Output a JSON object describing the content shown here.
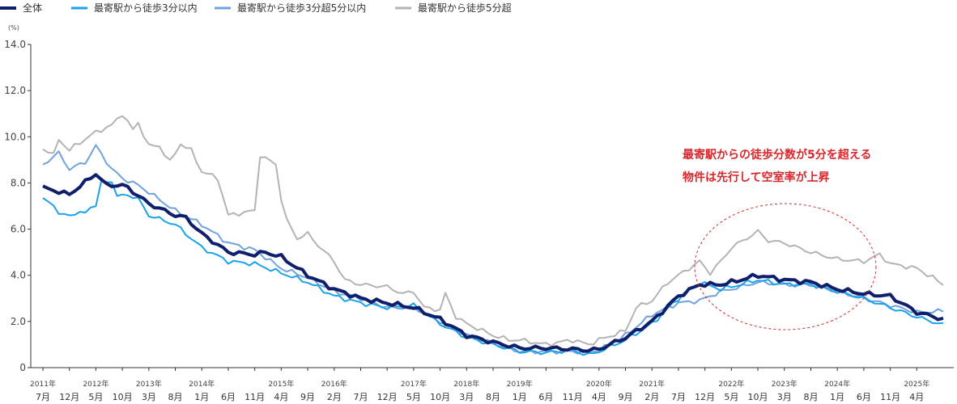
{
  "chart_data": {
    "type": "line",
    "unit_label": "(%)",
    "ylim": [
      0,
      14
    ],
    "yticks": [
      "0",
      "2.0",
      "4.0",
      "6.0",
      "8.0",
      "10.0",
      "12.0",
      "14.0"
    ],
    "grid": false,
    "legend_position": "top-left",
    "month_ticks": [
      {
        "i": 0,
        "label": "7月",
        "year": "2011年"
      },
      {
        "i": 5,
        "label": "12月"
      },
      {
        "i": 10,
        "label": "5月",
        "year": "2012年"
      },
      {
        "i": 15,
        "label": "10月"
      },
      {
        "i": 20,
        "label": "3月",
        "year": "2013年"
      },
      {
        "i": 25,
        "label": "8月"
      },
      {
        "i": 30,
        "label": "1月",
        "year": "2014年"
      },
      {
        "i": 35,
        "label": "6月"
      },
      {
        "i": 40,
        "label": "11月"
      },
      {
        "i": 45,
        "label": "4月",
        "year": "2015年"
      },
      {
        "i": 50,
        "label": "9月"
      },
      {
        "i": 55,
        "label": "2月",
        "year": "2016年"
      },
      {
        "i": 60,
        "label": "7月"
      },
      {
        "i": 65,
        "label": "12月"
      },
      {
        "i": 70,
        "label": "5月",
        "year": "2017年"
      },
      {
        "i": 75,
        "label": "10月"
      },
      {
        "i": 80,
        "label": "3月",
        "year": "2018年"
      },
      {
        "i": 85,
        "label": "8月"
      },
      {
        "i": 90,
        "label": "1月",
        "year": "2019年"
      },
      {
        "i": 95,
        "label": "6月"
      },
      {
        "i": 100,
        "label": "11月"
      },
      {
        "i": 105,
        "label": "4月",
        "year": "2020年"
      },
      {
        "i": 110,
        "label": "9月"
      },
      {
        "i": 115,
        "label": "2月",
        "year": "2021年"
      },
      {
        "i": 120,
        "label": "7月"
      },
      {
        "i": 125,
        "label": "12月"
      },
      {
        "i": 130,
        "label": "5月",
        "year": "2022年"
      },
      {
        "i": 135,
        "label": "10月"
      },
      {
        "i": 140,
        "label": "3月",
        "year": "2023年"
      },
      {
        "i": 145,
        "label": "8月"
      },
      {
        "i": 150,
        "label": "1月",
        "year": "2024年"
      },
      {
        "i": 155,
        "label": "6月"
      },
      {
        "i": 160,
        "label": "11月"
      },
      {
        "i": 165,
        "label": "4月",
        "year": "2025年"
      }
    ],
    "series": [
      {
        "name": "全体",
        "color": "#0f1f6b",
        "keypoints": [
          [
            0,
            7.8
          ],
          [
            5,
            7.5
          ],
          [
            10,
            8.4
          ],
          [
            12,
            7.9
          ],
          [
            15,
            7.9
          ],
          [
            16,
            7.8
          ],
          [
            20,
            7.1
          ],
          [
            25,
            6.6
          ],
          [
            27,
            6.5
          ],
          [
            30,
            5.8
          ],
          [
            35,
            5.0
          ],
          [
            40,
            4.9
          ],
          [
            42,
            5.0
          ],
          [
            45,
            4.8
          ],
          [
            50,
            4.0
          ],
          [
            55,
            3.4
          ],
          [
            60,
            3.0
          ],
          [
            65,
            2.8
          ],
          [
            70,
            2.6
          ],
          [
            75,
            2.1
          ],
          [
            80,
            1.4
          ],
          [
            85,
            1.1
          ],
          [
            90,
            0.85
          ],
          [
            95,
            0.85
          ],
          [
            100,
            0.8
          ],
          [
            103,
            0.75
          ],
          [
            105,
            0.8
          ],
          [
            110,
            1.3
          ],
          [
            115,
            2.0
          ],
          [
            120,
            3.1
          ],
          [
            124,
            3.6
          ],
          [
            128,
            3.6
          ],
          [
            130,
            3.7
          ],
          [
            135,
            4.0
          ],
          [
            140,
            3.8
          ],
          [
            145,
            3.7
          ],
          [
            150,
            3.4
          ],
          [
            155,
            3.2
          ],
          [
            160,
            3.1
          ],
          [
            165,
            2.4
          ],
          [
            170,
            2.1
          ]
        ]
      },
      {
        "name": "最寄駅から徒歩3分以内",
        "color": "#1aa3e8",
        "keypoints": [
          [
            0,
            7.3
          ],
          [
            2,
            7.1
          ],
          [
            3,
            6.6
          ],
          [
            8,
            6.7
          ],
          [
            9,
            7.0
          ],
          [
            10,
            7.0
          ],
          [
            11,
            8.0
          ],
          [
            13,
            8.1
          ],
          [
            14,
            7.4
          ],
          [
            16,
            7.5
          ],
          [
            18,
            7.3
          ],
          [
            20,
            6.6
          ],
          [
            25,
            6.2
          ],
          [
            30,
            5.2
          ],
          [
            35,
            4.6
          ],
          [
            40,
            4.5
          ],
          [
            45,
            4.1
          ],
          [
            50,
            3.7
          ],
          [
            55,
            3.1
          ],
          [
            60,
            2.8
          ],
          [
            65,
            2.6
          ],
          [
            70,
            2.7
          ],
          [
            75,
            1.9
          ],
          [
            80,
            1.3
          ],
          [
            85,
            1.0
          ],
          [
            90,
            0.7
          ],
          [
            95,
            0.65
          ],
          [
            100,
            0.75
          ],
          [
            103,
            0.55
          ],
          [
            105,
            0.7
          ],
          [
            110,
            1.2
          ],
          [
            115,
            1.9
          ],
          [
            120,
            3.0
          ],
          [
            124,
            3.7
          ],
          [
            128,
            3.4
          ],
          [
            130,
            3.5
          ],
          [
            135,
            3.8
          ],
          [
            140,
            3.6
          ],
          [
            145,
            3.6
          ],
          [
            150,
            3.3
          ],
          [
            155,
            3.0
          ],
          [
            160,
            2.6
          ],
          [
            165,
            2.2
          ],
          [
            170,
            1.85
          ]
        ]
      },
      {
        "name": "最寄駅から徒歩3分超5分以内",
        "color": "#6fa3dc",
        "keypoints": [
          [
            0,
            8.8
          ],
          [
            3,
            9.3
          ],
          [
            5,
            8.6
          ],
          [
            7,
            8.8
          ],
          [
            8,
            8.9
          ],
          [
            10,
            9.6
          ],
          [
            13,
            8.6
          ],
          [
            15,
            8.2
          ],
          [
            18,
            7.9
          ],
          [
            20,
            7.6
          ],
          [
            25,
            6.8
          ],
          [
            30,
            6.2
          ],
          [
            35,
            5.4
          ],
          [
            40,
            5.1
          ],
          [
            45,
            4.3
          ],
          [
            50,
            3.9
          ],
          [
            55,
            3.3
          ],
          [
            60,
            3.0
          ],
          [
            65,
            2.6
          ],
          [
            70,
            2.6
          ],
          [
            75,
            2.0
          ],
          [
            80,
            1.4
          ],
          [
            85,
            1.05
          ],
          [
            90,
            0.7
          ],
          [
            95,
            0.7
          ],
          [
            100,
            0.7
          ],
          [
            103,
            0.7
          ],
          [
            105,
            0.75
          ],
          [
            110,
            1.4
          ],
          [
            115,
            2.3
          ],
          [
            120,
            2.8
          ],
          [
            124,
            2.9
          ],
          [
            128,
            3.3
          ],
          [
            130,
            3.4
          ],
          [
            135,
            3.7
          ],
          [
            140,
            3.6
          ],
          [
            145,
            3.6
          ],
          [
            150,
            3.3
          ],
          [
            155,
            3.0
          ],
          [
            160,
            2.7
          ],
          [
            165,
            2.4
          ],
          [
            170,
            2.45
          ]
        ]
      },
      {
        "name": "最寄駅から徒歩5分超",
        "color": "#b3b3b3",
        "keypoints": [
          [
            0,
            9.5
          ],
          [
            2,
            9.2
          ],
          [
            3,
            9.9
          ],
          [
            5,
            9.4
          ],
          [
            6,
            9.6
          ],
          [
            10,
            10.2
          ],
          [
            13,
            10.5
          ],
          [
            15,
            11.0
          ],
          [
            17,
            10.3
          ],
          [
            18,
            10.6
          ],
          [
            20,
            9.6
          ],
          [
            22,
            9.6
          ],
          [
            24,
            8.9
          ],
          [
            26,
            9.7
          ],
          [
            28,
            9.4
          ],
          [
            30,
            8.5
          ],
          [
            33,
            8.2
          ],
          [
            35,
            6.6
          ],
          [
            40,
            6.8
          ],
          [
            41,
            9.2
          ],
          [
            44,
            8.8
          ],
          [
            45,
            7.3
          ],
          [
            46,
            6.4
          ],
          [
            48,
            5.6
          ],
          [
            50,
            5.8
          ],
          [
            52,
            5.3
          ],
          [
            55,
            4.6
          ],
          [
            57,
            3.8
          ],
          [
            60,
            3.6
          ],
          [
            65,
            3.5
          ],
          [
            68,
            3.2
          ],
          [
            70,
            3.3
          ],
          [
            72,
            2.6
          ],
          [
            75,
            2.5
          ],
          [
            76,
            3.2
          ],
          [
            78,
            2.2
          ],
          [
            80,
            1.9
          ],
          [
            85,
            1.4
          ],
          [
            88,
            1.2
          ],
          [
            90,
            1.2
          ],
          [
            95,
            1.0
          ],
          [
            100,
            1.2
          ],
          [
            103,
            1.0
          ],
          [
            105,
            1.2
          ],
          [
            110,
            1.6
          ],
          [
            112,
            2.6
          ],
          [
            115,
            2.9
          ],
          [
            118,
            3.7
          ],
          [
            120,
            4.0
          ],
          [
            124,
            4.6
          ],
          [
            126,
            4.1
          ],
          [
            128,
            4.6
          ],
          [
            130,
            5.2
          ],
          [
            135,
            5.9
          ],
          [
            137,
            5.5
          ],
          [
            140,
            5.4
          ],
          [
            145,
            5.0
          ],
          [
            150,
            4.7
          ],
          [
            155,
            4.6
          ],
          [
            158,
            4.9
          ],
          [
            160,
            4.5
          ],
          [
            165,
            4.3
          ],
          [
            168,
            3.9
          ],
          [
            170,
            3.6
          ]
        ]
      }
    ],
    "annotation_lines": [
      "最寄駅からの徒歩分数が5分を超える",
      "物件は先行して空室率が上昇"
    ]
  }
}
